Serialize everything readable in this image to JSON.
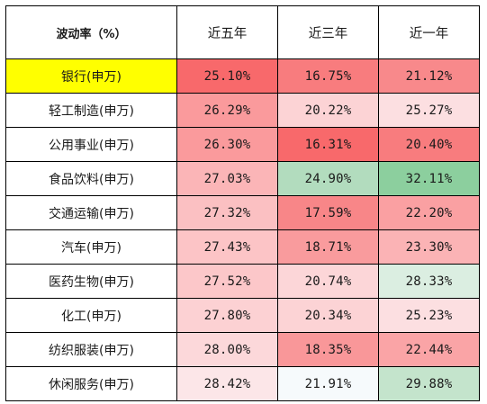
{
  "table": {
    "corner_header": "波动率（%）",
    "columns": [
      "近五年",
      "近三年",
      "近一年"
    ],
    "rows": [
      {
        "name": "银行(申万)",
        "name_bg": "#ffff00",
        "values": [
          "25.10%",
          "16.75%",
          "21.12%"
        ],
        "colors": [
          "#f8696b",
          "#f87c7e",
          "#f8898b"
        ]
      },
      {
        "name": "轻工制造(申万)",
        "name_bg": "#ffffff",
        "values": [
          "26.29%",
          "20.22%",
          "25.27%"
        ],
        "colors": [
          "#fa9a9c",
          "#fcd3d5",
          "#fcdfe1"
        ]
      },
      {
        "name": "公用事业(申万)",
        "name_bg": "#ffffff",
        "values": [
          "26.30%",
          "16.31%",
          "20.40%"
        ],
        "colors": [
          "#fa9a9c",
          "#f8696b",
          "#f87c7e"
        ]
      },
      {
        "name": "食品饮料(申万)",
        "name_bg": "#ffffff",
        "values": [
          "27.03%",
          "24.90%",
          "32.11%"
        ],
        "colors": [
          "#fbb5b7",
          "#b2dcbe",
          "#8ccf9e"
        ]
      },
      {
        "name": "交通运输(申万)",
        "name_bg": "#ffffff",
        "values": [
          "27.32%",
          "17.59%",
          "22.20%"
        ],
        "colors": [
          "#fbc0c2",
          "#f88688",
          "#faa0a2"
        ]
      },
      {
        "name": "汽车(申万)",
        "name_bg": "#ffffff",
        "values": [
          "27.43%",
          "18.71%",
          "23.30%"
        ],
        "colors": [
          "#fcc4c6",
          "#f99b9d",
          "#fbb3b5"
        ]
      },
      {
        "name": "医药生物(申万)",
        "name_bg": "#ffffff",
        "values": [
          "27.52%",
          "20.74%",
          "28.33%"
        ],
        "colors": [
          "#fcc7c9",
          "#fcd6d8",
          "#dbeee1"
        ]
      },
      {
        "name": "化工(申万)",
        "name_bg": "#ffffff",
        "values": [
          "27.80%",
          "20.34%",
          "25.23%"
        ],
        "colors": [
          "#fcd1d3",
          "#fcd3d5",
          "#fcdfe1"
        ]
      },
      {
        "name": "纺织服装(申万)",
        "name_bg": "#ffffff",
        "values": [
          "28.00%",
          "18.35%",
          "22.44%"
        ],
        "colors": [
          "#fcd8da",
          "#f99799",
          "#faa4a6"
        ]
      },
      {
        "name": "休闲服务(申万)",
        "name_bg": "#ffffff",
        "values": [
          "28.42%",
          "21.91%",
          "29.88%"
        ],
        "colors": [
          "#fce6e8",
          "#f6fafc",
          "#c4e4cc"
        ]
      }
    ]
  }
}
